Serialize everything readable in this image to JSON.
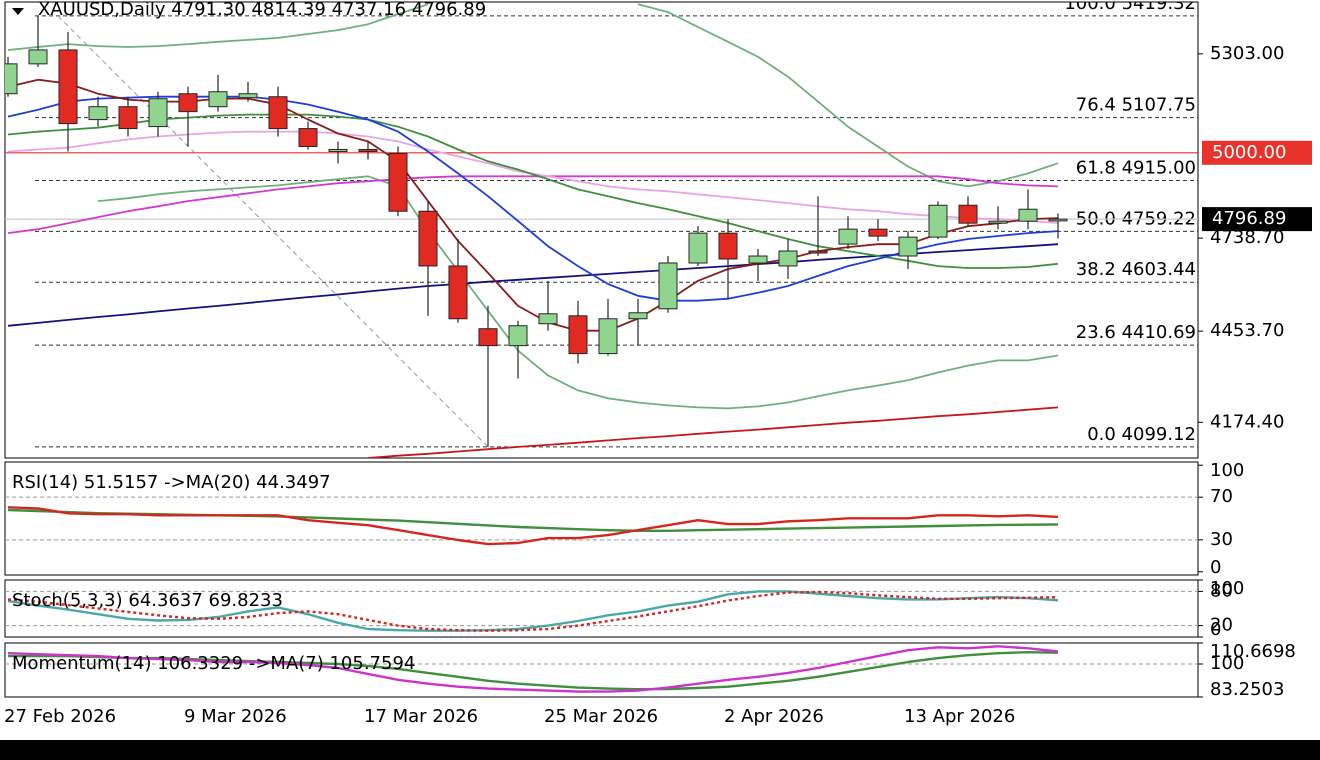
{
  "chart_data": [
    {
      "type": "candlestick",
      "title": "XAUUSD,Daily 4791.30 4814.39 4737.16 4796.89",
      "categories": [
        "27 Feb 2026",
        null,
        null,
        null,
        null,
        null,
        "9 Mar 2026",
        null,
        null,
        null,
        null,
        null,
        "17 Mar 2026",
        null,
        null,
        null,
        null,
        null,
        "25 Mar 2026",
        null,
        null,
        null,
        null,
        null,
        "2 Apr 2026",
        null,
        null,
        null,
        null,
        null,
        "13 Apr 2026",
        null,
        null,
        null,
        null,
        null
      ],
      "open": [
        5181.0,
        5272.5,
        5315.2,
        5101.7,
        5141.3,
        5080.3,
        5181.0,
        5141.3,
        5168.8,
        5171.8,
        5074.2,
        5004.1,
        5010.2,
        4998.0,
        4821.0,
        4653.3,
        4461.1,
        4409.2,
        4476.3,
        4500.7,
        4384.8,
        4491.6,
        4522.1,
        4662.4,
        4753.9,
        4662.4,
        4653.3,
        4699.1,
        4720.4,
        4766.1,
        4683.8,
        4741.7,
        4839.3,
        4784.4,
        4790.5,
        4791.3
      ],
      "high": [
        5293.8,
        5419.3,
        5370.0,
        5171.8,
        5171.8,
        5187.1,
        5202.3,
        5238.9,
        5217.6,
        5202.3,
        5095.6,
        5034.6,
        5034.6,
        5019.3,
        4851.5,
        4735.6,
        4531.3,
        4485.5,
        4607.5,
        4546.5,
        4552.6,
        4552.6,
        4683.8,
        4775.3,
        4796.6,
        4705.3,
        4735.6,
        4866.8,
        4805.8,
        4796.6,
        4760.0,
        4851.5,
        4866.8,
        4836.3,
        4888.0,
        4814.39
      ],
      "low": [
        5171.8,
        5263.3,
        5004.1,
        5080.3,
        5049.8,
        5049.8,
        5019.3,
        5126.1,
        5156.6,
        5049.8,
        5010.2,
        4967.4,
        4979.6,
        4805.8,
        4500.7,
        4479.4,
        4099.12,
        4308.5,
        4455.0,
        4354.3,
        4378.7,
        4409.2,
        4509.9,
        4653.3,
        4552.6,
        4607.5,
        4613.6,
        4683.8,
        4705.3,
        4729.6,
        4644.1,
        4735.6,
        4775.3,
        4766.1,
        4766.1,
        4737.16
      ],
      "close": [
        5272.5,
        5315.2,
        5089.5,
        5141.3,
        5074.2,
        5165.7,
        5126.1,
        5187.1,
        5181.0,
        5074.2,
        5019.3,
        5010.2,
        5004.1,
        4821.0,
        4653.3,
        4491.6,
        4409.2,
        4470.2,
        4506.8,
        4384.8,
        4491.6,
        4509.9,
        4662.4,
        4753.9,
        4674.6,
        4683.8,
        4699.1,
        4693.0,
        4766.1,
        4744.8,
        4741.7,
        4839.3,
        4784.4,
        4790.5,
        4827.1,
        4796.89
      ],
      "up_color": "#8fd48f",
      "down_color": "#e02a22",
      "edge_color": "#262626",
      "series": [
        {
          "color": "#6fb07a",
          "values": [
            5315,
            5324,
            5333,
            5327,
            5324,
            5327,
            5333,
            5340,
            5346,
            5352,
            5364,
            5376,
            5394,
            5425,
            5455,
            null,
            null,
            null,
            null,
            null,
            null,
            5455,
            5431,
            5385,
            5340,
            5294,
            5233,
            5157,
            5080,
            5019,
            4958,
            4913,
            4897,
            4913,
            4937,
            4968
          ]
        },
        {
          "color": "#6fb07a",
          "values": [
            null,
            null,
            null,
            4852,
            4861,
            4873,
            4882,
            4888,
            4894,
            4900,
            4910,
            4919,
            4928,
            4897,
            4760,
            4638,
            4516,
            4394,
            4318,
            4272,
            4248,
            4235,
            4226,
            4220,
            4217,
            4223,
            4235,
            4254,
            4272,
            4287,
            4303,
            4327,
            4348,
            4364,
            4364,
            4379
          ]
        },
        {
          "color": "#c8161c",
          "values": [
            null,
            null,
            null,
            null,
            null,
            null,
            null,
            null,
            null,
            null,
            null,
            null,
            4065,
            4072,
            4078,
            4085,
            4092,
            4099,
            4105,
            4112,
            4119,
            4126,
            4132,
            4139,
            4146,
            4152,
            4159,
            4166,
            4173,
            4179,
            4186,
            4193,
            4199,
            4206,
            4213,
            4220
          ]
        },
        {
          "color": "#12127a",
          "values": [
            4470,
            4479,
            4488,
            4497,
            4505,
            4514,
            4523,
            4531,
            4540,
            4549,
            4558,
            4566,
            4575,
            4584,
            4592,
            4598,
            4605,
            4611,
            4617,
            4623,
            4629,
            4635,
            4641,
            4647,
            4653,
            4659,
            4665,
            4672,
            4678,
            4684,
            4690,
            4696,
            4702,
            4708,
            4714,
            4720
          ]
        },
        {
          "color": "#d23ad2",
          "values": [
            4754,
            4766,
            4784,
            4803,
            4821,
            4836,
            4852,
            4864,
            4876,
            4888,
            4897,
            4907,
            4913,
            4919,
            4925,
            4928,
            4928,
            4928,
            4928,
            4928,
            4928,
            4928,
            4928,
            4928,
            4928,
            4928,
            4928,
            4928,
            4928,
            4928,
            4928,
            4928,
            4919,
            4907,
            4900,
            4897
          ]
        },
        {
          "color": "#e6a6e6",
          "values": [
            5004,
            5010,
            5016,
            5029,
            5041,
            5050,
            5056,
            5062,
            5065,
            5065,
            5065,
            5059,
            5050,
            5035,
            5010,
            4989,
            4968,
            4943,
            4928,
            4913,
            4897,
            4888,
            4882,
            4873,
            4864,
            4855,
            4846,
            4836,
            4827,
            4821,
            4812,
            4806,
            4800,
            4797,
            4791,
            4785
          ]
        },
        {
          "color": "#3f8f3f",
          "values": [
            5056,
            5065,
            5071,
            5077,
            5089,
            5102,
            5108,
            5114,
            5117,
            5117,
            5117,
            5111,
            5102,
            5080,
            5050,
            5010,
            4974,
            4949,
            4919,
            4888,
            4867,
            4846,
            4827,
            4806,
            4785,
            4760,
            4736,
            4714,
            4699,
            4684,
            4669,
            4653,
            4647,
            4647,
            4650,
            4660
          ]
        },
        {
          "color": "#1e3ed8",
          "values": [
            5111,
            5132,
            5157,
            5166,
            5169,
            5172,
            5172,
            5172,
            5172,
            5163,
            5148,
            5126,
            5102,
            5065,
            5004,
            4937,
            4867,
            4791,
            4714,
            4653,
            4598,
            4562,
            4547,
            4547,
            4553,
            4571,
            4592,
            4623,
            4653,
            4675,
            4699,
            4720,
            4736,
            4745,
            4754,
            4760
          ]
        },
        {
          "color": "#8a1c1c",
          "values": [
            5202,
            5224,
            5212,
            5181,
            5163,
            5157,
            5157,
            5166,
            5166,
            5148,
            5102,
            5059,
            5035,
            4974,
            4852,
            4730,
            4632,
            4531,
            4480,
            4455,
            4455,
            4492,
            4547,
            4608,
            4644,
            4660,
            4675,
            4699,
            4711,
            4720,
            4720,
            4751,
            4775,
            4784,
            4797,
            4800
          ]
        }
      ],
      "ylim": [
        4065,
        5462
      ],
      "yticks": [
        {
          "value": 5303.0,
          "label": "5303.00"
        },
        {
          "value": 4738.7,
          "label": "4738.70"
        },
        {
          "value": 4453.7,
          "label": "4453.70"
        },
        {
          "value": 4174.4,
          "label": "4174.40"
        }
      ],
      "fib_levels": [
        {
          "value": 5419.32,
          "label": "100.0 5419.32"
        },
        {
          "value": 5107.75,
          "label": "76.4 5107.75"
        },
        {
          "value": 4915.0,
          "label": "61.8 4915.00"
        },
        {
          "value": 4759.22,
          "label": "50.0 4759.22"
        },
        {
          "value": 4603.44,
          "label": "38.2 4603.44"
        },
        {
          "value": 4410.69,
          "label": "23.6 4410.69"
        },
        {
          "value": 4099.12,
          "label": "0.0 4099.12"
        }
      ],
      "price_labels": [
        {
          "value": 5000,
          "label": "5000.00",
          "color": "#e8322b"
        },
        {
          "value": 4796.89,
          "label": "4796.89",
          "color": "#000000"
        }
      ]
    },
    {
      "type": "line",
      "title": "RSI(14) 51.5157 ->MA(20) 44.3497",
      "series": [
        {
          "color": "#3f8f3f",
          "values": [
            58,
            57,
            56,
            55,
            54.5,
            54,
            53.5,
            53,
            52.5,
            52,
            51,
            50,
            49,
            48,
            46.5,
            45,
            43.5,
            42,
            41,
            40,
            39,
            38.5,
            38.5,
            39,
            39.5,
            40,
            40.5,
            41,
            41.5,
            42,
            42.5,
            43,
            43.5,
            44,
            44.2,
            44.3497
          ]
        },
        {
          "color": "#d4261e",
          "values": [
            60.5,
            59.5,
            54.9,
            54.0,
            54.0,
            53.0,
            53.0,
            53.0,
            53.0,
            53.0,
            48.4,
            46,
            43.7,
            39.1,
            34.4,
            29.8,
            26.0,
            27.0,
            31.6,
            31.6,
            34.4,
            39.1,
            43.7,
            48.4,
            44.7,
            44.7,
            47.4,
            48.4,
            50.2,
            50.2,
            50.2,
            53.0,
            53.0,
            52.1,
            53.0,
            51.5157
          ]
        }
      ],
      "ylim": [
        -3,
        103
      ],
      "yticks": [
        0,
        30,
        70,
        100
      ],
      "levels": [
        30,
        70
      ]
    },
    {
      "type": "line",
      "title": "Stoch(5,3,3) 64.3637 69.8233",
      "series": [
        {
          "color": "#4aa8a8",
          "values": [
            63,
            55,
            48,
            40,
            32,
            29,
            30,
            35,
            45,
            52,
            40,
            25,
            14,
            12,
            11,
            11,
            12,
            14,
            20,
            28,
            38,
            45,
            55,
            62,
            75,
            80,
            80,
            76,
            72,
            68,
            66,
            66,
            68,
            70,
            68,
            64.3637
          ]
        },
        {
          "color": "#d4261e",
          "dashed": true,
          "values": [
            66,
            62,
            56,
            50,
            44,
            38,
            33,
            32,
            35,
            42,
            45,
            40,
            30,
            20,
            14,
            12,
            11,
            12,
            14,
            20,
            28,
            36,
            45,
            54,
            64,
            72,
            78,
            79,
            77,
            73,
            70,
            67,
            67,
            68,
            69,
            69.8233
          ]
        }
      ],
      "ylim": [
        0,
        100
      ],
      "yticks": [
        0,
        20,
        80,
        100
      ],
      "levels": [
        20,
        80
      ]
    },
    {
      "type": "line",
      "title": "Momentum(14) 106.3329 ->MA(7) 105.7594",
      "series": [
        {
          "color": "#3f8f3f",
          "values": [
            104,
            104,
            104,
            103.5,
            103,
            103,
            102.5,
            102,
            101.5,
            101,
            100.5,
            100,
            99,
            97.5,
            95.5,
            93.5,
            91.5,
            90,
            89,
            88,
            87.5,
            87.2,
            87.3,
            87.8,
            88.5,
            90,
            91.5,
            93.5,
            96,
            98.5,
            101,
            103,
            104.5,
            105.5,
            106,
            105.7594
          ]
        },
        {
          "color": "#cc33cc",
          "values": [
            105.5,
            105,
            104.5,
            104,
            103,
            102.5,
            102,
            101,
            101,
            100.5,
            99.5,
            98,
            95,
            92,
            90,
            88.5,
            87.5,
            87,
            86.5,
            86,
            86,
            86.5,
            88,
            90,
            92,
            93.5,
            95.5,
            98,
            101,
            104,
            107,
            108.5,
            108,
            109,
            108,
            106.3329
          ]
        }
      ],
      "ylim": [
        83.2503,
        110.6698
      ],
      "yticks": [
        83.2503,
        100,
        110.6698
      ],
      "levels": [
        100
      ]
    }
  ]
}
